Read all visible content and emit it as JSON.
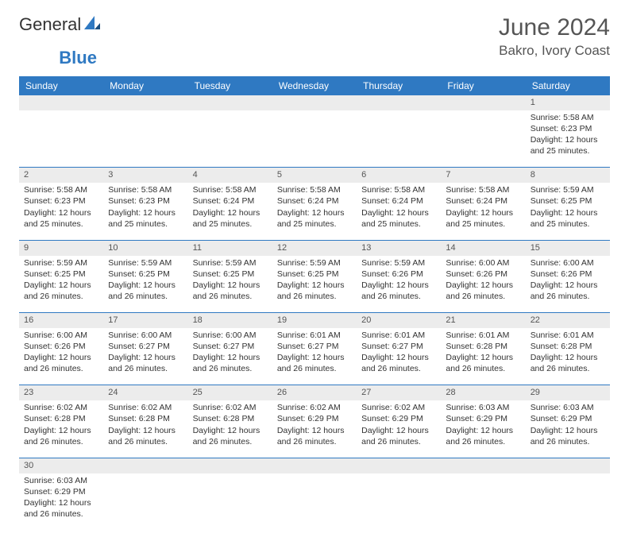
{
  "logo": {
    "textA": "General",
    "textB": "Blue"
  },
  "title": "June 2024",
  "location": "Bakro, Ivory Coast",
  "colors": {
    "header_bg": "#2f79c2",
    "header_text": "#ffffff",
    "daynum_bg": "#ececec",
    "row_divider": "#2f79c2",
    "text": "#333333",
    "muted": "#555555",
    "background": "#ffffff"
  },
  "typography": {
    "title_fontsize": 30,
    "location_fontsize": 17,
    "dayheader_fontsize": 12,
    "cell_fontsize": 10.5
  },
  "day_headers": [
    "Sunday",
    "Monday",
    "Tuesday",
    "Wednesday",
    "Thursday",
    "Friday",
    "Saturday"
  ],
  "weeks": [
    [
      null,
      null,
      null,
      null,
      null,
      null,
      {
        "n": "1",
        "sunrise": "5:58 AM",
        "sunset": "6:23 PM",
        "daylight": "12 hours and 25 minutes."
      }
    ],
    [
      {
        "n": "2",
        "sunrise": "5:58 AM",
        "sunset": "6:23 PM",
        "daylight": "12 hours and 25 minutes."
      },
      {
        "n": "3",
        "sunrise": "5:58 AM",
        "sunset": "6:23 PM",
        "daylight": "12 hours and 25 minutes."
      },
      {
        "n": "4",
        "sunrise": "5:58 AM",
        "sunset": "6:24 PM",
        "daylight": "12 hours and 25 minutes."
      },
      {
        "n": "5",
        "sunrise": "5:58 AM",
        "sunset": "6:24 PM",
        "daylight": "12 hours and 25 minutes."
      },
      {
        "n": "6",
        "sunrise": "5:58 AM",
        "sunset": "6:24 PM",
        "daylight": "12 hours and 25 minutes."
      },
      {
        "n": "7",
        "sunrise": "5:58 AM",
        "sunset": "6:24 PM",
        "daylight": "12 hours and 25 minutes."
      },
      {
        "n": "8",
        "sunrise": "5:59 AM",
        "sunset": "6:25 PM",
        "daylight": "12 hours and 25 minutes."
      }
    ],
    [
      {
        "n": "9",
        "sunrise": "5:59 AM",
        "sunset": "6:25 PM",
        "daylight": "12 hours and 26 minutes."
      },
      {
        "n": "10",
        "sunrise": "5:59 AM",
        "sunset": "6:25 PM",
        "daylight": "12 hours and 26 minutes."
      },
      {
        "n": "11",
        "sunrise": "5:59 AM",
        "sunset": "6:25 PM",
        "daylight": "12 hours and 26 minutes."
      },
      {
        "n": "12",
        "sunrise": "5:59 AM",
        "sunset": "6:25 PM",
        "daylight": "12 hours and 26 minutes."
      },
      {
        "n": "13",
        "sunrise": "5:59 AM",
        "sunset": "6:26 PM",
        "daylight": "12 hours and 26 minutes."
      },
      {
        "n": "14",
        "sunrise": "6:00 AM",
        "sunset": "6:26 PM",
        "daylight": "12 hours and 26 minutes."
      },
      {
        "n": "15",
        "sunrise": "6:00 AM",
        "sunset": "6:26 PM",
        "daylight": "12 hours and 26 minutes."
      }
    ],
    [
      {
        "n": "16",
        "sunrise": "6:00 AM",
        "sunset": "6:26 PM",
        "daylight": "12 hours and 26 minutes."
      },
      {
        "n": "17",
        "sunrise": "6:00 AM",
        "sunset": "6:27 PM",
        "daylight": "12 hours and 26 minutes."
      },
      {
        "n": "18",
        "sunrise": "6:00 AM",
        "sunset": "6:27 PM",
        "daylight": "12 hours and 26 minutes."
      },
      {
        "n": "19",
        "sunrise": "6:01 AM",
        "sunset": "6:27 PM",
        "daylight": "12 hours and 26 minutes."
      },
      {
        "n": "20",
        "sunrise": "6:01 AM",
        "sunset": "6:27 PM",
        "daylight": "12 hours and 26 minutes."
      },
      {
        "n": "21",
        "sunrise": "6:01 AM",
        "sunset": "6:28 PM",
        "daylight": "12 hours and 26 minutes."
      },
      {
        "n": "22",
        "sunrise": "6:01 AM",
        "sunset": "6:28 PM",
        "daylight": "12 hours and 26 minutes."
      }
    ],
    [
      {
        "n": "23",
        "sunrise": "6:02 AM",
        "sunset": "6:28 PM",
        "daylight": "12 hours and 26 minutes."
      },
      {
        "n": "24",
        "sunrise": "6:02 AM",
        "sunset": "6:28 PM",
        "daylight": "12 hours and 26 minutes."
      },
      {
        "n": "25",
        "sunrise": "6:02 AM",
        "sunset": "6:28 PM",
        "daylight": "12 hours and 26 minutes."
      },
      {
        "n": "26",
        "sunrise": "6:02 AM",
        "sunset": "6:29 PM",
        "daylight": "12 hours and 26 minutes."
      },
      {
        "n": "27",
        "sunrise": "6:02 AM",
        "sunset": "6:29 PM",
        "daylight": "12 hours and 26 minutes."
      },
      {
        "n": "28",
        "sunrise": "6:03 AM",
        "sunset": "6:29 PM",
        "daylight": "12 hours and 26 minutes."
      },
      {
        "n": "29",
        "sunrise": "6:03 AM",
        "sunset": "6:29 PM",
        "daylight": "12 hours and 26 minutes."
      }
    ],
    [
      {
        "n": "30",
        "sunrise": "6:03 AM",
        "sunset": "6:29 PM",
        "daylight": "12 hours and 26 minutes."
      },
      null,
      null,
      null,
      null,
      null,
      null
    ]
  ],
  "labels": {
    "sunrise": "Sunrise:",
    "sunset": "Sunset:",
    "daylight": "Daylight:"
  }
}
